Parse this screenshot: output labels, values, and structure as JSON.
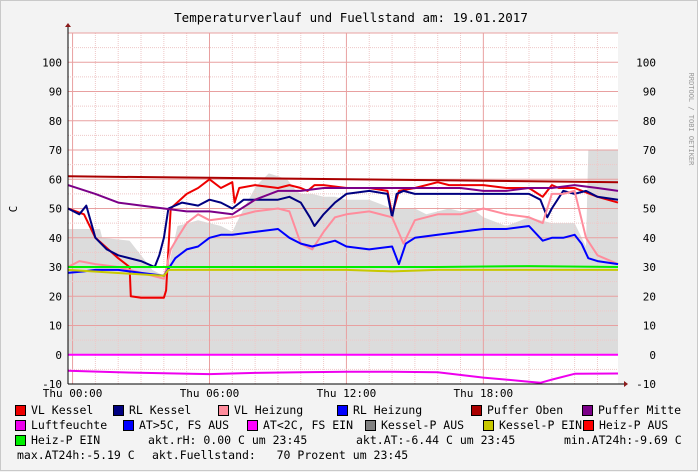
{
  "chart_data": {
    "type": "line",
    "title": "Temperaturverlauf und Fuellstand am: 19.01.2017",
    "ylabel": "C",
    "side_label": "RRDTOOL / TOBI OETIKER",
    "ylim": [
      -10,
      110
    ],
    "yticks": [
      -10,
      0,
      10,
      20,
      30,
      40,
      50,
      60,
      70,
      80,
      90,
      100
    ],
    "xlim": [
      -0.2,
      23.9
    ],
    "xticks": [
      {
        "x": 0,
        "label": "Thu 00:00"
      },
      {
        "x": 6,
        "label": "Thu 06:00"
      },
      {
        "x": 12,
        "label": "Thu 12:00"
      },
      {
        "x": 18,
        "label": "Thu 18:00"
      }
    ],
    "area": {
      "name": "Fuellstand",
      "color": "#DCDCDC",
      "x": [
        -0.2,
        1.2,
        1.3,
        2.5,
        3.5,
        4.0,
        4.2,
        4.6,
        5.5,
        6.5,
        7.0,
        7.5,
        8.0,
        8.2,
        8.6,
        9.0,
        9.4,
        9.8,
        10.0,
        10.5,
        11.0,
        11.5,
        12.0,
        13.0,
        14.0,
        15.0,
        15.5,
        16.0,
        16.5,
        17.0,
        17.5,
        18.0,
        19.0,
        20.0,
        21.0,
        22.0,
        22.5,
        22.6,
        23.9
      ],
      "y": [
        43,
        43,
        40,
        39,
        29,
        27,
        30,
        44,
        46,
        44,
        42,
        50,
        57,
        59,
        62,
        61,
        60,
        56,
        55,
        55,
        54,
        54,
        53,
        53,
        50,
        50,
        48,
        49,
        50,
        49,
        50,
        47,
        44,
        47,
        45,
        45,
        37,
        70,
        70
      ]
    },
    "series": [
      {
        "name": "VL Kessel",
        "color": "#EE0000",
        "x": [
          -0.2,
          0.5,
          1.0,
          2.0,
          2.5,
          2.55,
          3.0,
          4.0,
          4.1,
          4.3,
          5.0,
          5.5,
          6.0,
          6.5,
          7.0,
          7.1,
          7.3,
          8.0,
          9.0,
          9.5,
          10.0,
          10.3,
          10.6,
          11.0,
          12.0,
          13.0,
          13.8,
          14.0,
          14.3,
          15.0,
          16.0,
          16.5,
          17.0,
          18.0,
          19.0,
          20.0,
          20.6,
          21.0,
          21.3,
          22.0,
          23.0,
          23.9
        ],
        "y": [
          50,
          48,
          40,
          33,
          30,
          20,
          19.5,
          19.5,
          22,
          50,
          55,
          57,
          60,
          57,
          59,
          52,
          57,
          58,
          57,
          58,
          57,
          56,
          58,
          58,
          57,
          57,
          56,
          48,
          56,
          57,
          59,
          58,
          58,
          58,
          57,
          57,
          54,
          58,
          57,
          57,
          54,
          52
        ]
      },
      {
        "name": "RL Kessel",
        "color": "#000080",
        "x": [
          -0.2,
          0.3,
          0.6,
          1.0,
          1.5,
          2.0,
          3.0,
          3.6,
          3.8,
          4.0,
          4.2,
          4.8,
          5.5,
          6.0,
          6.5,
          7.0,
          7.5,
          8.0,
          9.0,
          9.5,
          10.0,
          10.4,
          10.6,
          11.0,
          11.5,
          12.0,
          13.0,
          13.8,
          14.0,
          14.2,
          14.5,
          15.0,
          16.0,
          17.0,
          18.0,
          19.0,
          20.0,
          20.5,
          20.8,
          21.0,
          21.5,
          22.0,
          22.5,
          23.0,
          23.9
        ],
        "y": [
          50,
          48,
          51,
          40,
          36,
          34,
          32,
          30,
          34,
          40,
          50,
          52,
          51,
          53,
          52,
          50,
          53,
          53,
          53,
          54,
          52,
          47,
          44,
          48,
          52,
          55,
          56,
          55,
          47,
          55,
          56,
          55,
          55,
          55,
          55,
          55,
          55,
          53,
          47,
          50,
          56,
          55,
          56,
          54,
          53
        ]
      },
      {
        "name": "VL Heizung",
        "color": "#FF8C9C",
        "x": [
          -0.2,
          0.3,
          1.0,
          2.0,
          3.0,
          4.0,
          4.3,
          4.6,
          5.0,
          5.5,
          6.0,
          7.0,
          8.0,
          9.0,
          9.5,
          10.0,
          10.5,
          11.0,
          11.5,
          12.0,
          13.0,
          14.0,
          14.5,
          15.0,
          16.0,
          17.0,
          18.0,
          19.0,
          20.0,
          20.6,
          21.0,
          21.5,
          22.0,
          22.5,
          23.0,
          23.9
        ],
        "y": [
          30,
          32,
          31,
          30,
          28,
          26,
          36,
          40,
          45,
          48,
          46,
          47,
          49,
          50,
          49,
          38,
          36,
          42,
          47,
          48,
          49,
          47,
          38,
          46,
          48,
          48,
          50,
          48,
          47,
          45,
          55,
          55,
          56,
          40,
          34,
          31
        ]
      },
      {
        "name": "RL Heizung",
        "color": "#0000FF",
        "x": [
          -0.2,
          0.5,
          1.0,
          2.0,
          3.0,
          4.0,
          4.5,
          5.0,
          5.5,
          6.0,
          6.5,
          7.0,
          8.0,
          9.0,
          9.5,
          10.0,
          10.5,
          11.0,
          11.5,
          12.0,
          13.0,
          14.0,
          14.3,
          14.6,
          15.0,
          16.0,
          17.0,
          18.0,
          19.0,
          20.0,
          20.6,
          21.0,
          21.5,
          22.0,
          22.3,
          22.6,
          23.0,
          23.9
        ],
        "y": [
          28,
          28.5,
          29,
          29,
          28,
          27,
          33,
          36,
          37,
          40,
          41,
          41,
          42,
          43,
          40,
          38,
          37,
          38,
          39,
          37,
          36,
          37,
          31,
          38,
          40,
          41,
          42,
          43,
          43,
          44,
          39,
          40,
          40,
          41,
          38,
          33,
          32,
          31
        ]
      },
      {
        "name": "Puffer Oben",
        "color": "#AA0000",
        "x": [
          -0.2,
          23.9
        ],
        "y": [
          61,
          59
        ]
      },
      {
        "name": "Puffer Mitte",
        "color": "#7B0088",
        "x": [
          -0.2,
          1.0,
          2.0,
          4.0,
          5.0,
          6.0,
          7.0,
          8.0,
          9.0,
          10.0,
          11.0,
          12.0,
          13.0,
          14.0,
          15.0,
          16.0,
          17.0,
          18.0,
          19.0,
          20.0,
          21.0,
          22.0,
          23.0,
          23.9
        ],
        "y": [
          58,
          55,
          52,
          50,
          49,
          49,
          48,
          53,
          56,
          56,
          57,
          57,
          57,
          57,
          57,
          57,
          57,
          56,
          56,
          57,
          57,
          58,
          57,
          56
        ]
      },
      {
        "name": "Luftfeuchte",
        "color": "#EE00EE",
        "x": [
          -0.2,
          2.0,
          4.0,
          6.0,
          8.0,
          10.0,
          12.0,
          14.0,
          16.0,
          18.0,
          19.0,
          20.0,
          20.5,
          21.0,
          22.0,
          23.9
        ],
        "y": [
          -5.5,
          -6,
          -6.3,
          -6.6,
          -6.2,
          -6,
          -5.8,
          -5.8,
          -6,
          -7.8,
          -8.5,
          -9.2,
          -9.6,
          -8.5,
          -6.5,
          -6.4
        ]
      },
      {
        "name": "AT<2C, FS EIN",
        "color": "#FF00FF",
        "x": [
          -0.2,
          23.9
        ],
        "y": [
          0,
          0
        ]
      },
      {
        "name": "Kessel-P EIN",
        "color": "#C8C800",
        "x": [
          -0.2,
          4.0,
          4.2,
          12.0,
          14.0,
          16.0,
          18.0,
          20.0,
          23.9
        ],
        "y": [
          29,
          27,
          29,
          29,
          28.5,
          29,
          29,
          29,
          29
        ]
      },
      {
        "name": "Heiz-P EIN",
        "color": "#00EE00",
        "x": [
          -0.2,
          4.2,
          8.0,
          12.0,
          16.0,
          20.0,
          23.9
        ],
        "y": [
          30,
          30,
          30,
          30,
          30,
          30.3,
          30
        ]
      }
    ]
  },
  "legend": [
    {
      "label": "VL Kessel",
      "color": "#EE0000"
    },
    {
      "label": "RL Kessel",
      "color": "#000080"
    },
    {
      "label": "VL Heizung",
      "color": "#FF8C9C"
    },
    {
      "label": "RL Heizung",
      "color": "#0000FF"
    },
    {
      "label": "Puffer Oben",
      "color": "#AA0000"
    },
    {
      "label": "Puffer Mitte",
      "color": "#7B0088"
    },
    {
      "label": "Luftfeuchte",
      "color": "#EE00EE"
    },
    {
      "label": "AT>5C, FS AUS",
      "color": "#0000FF"
    },
    {
      "label": "AT<2C, FS EIN",
      "color": "#FF00FF"
    },
    {
      "label": "Kessel-P AUS",
      "color": "#808080"
    },
    {
      "label": "Kessel-P EIN",
      "color": "#C8C800"
    },
    {
      "label": "Heiz-P AUS",
      "color": "#FF0000"
    },
    {
      "label": "Heiz-P EIN",
      "color": "#00EE00"
    }
  ],
  "stats": {
    "akt_rh": "akt.rH: 0.00 C um 23:45",
    "akt_at": "akt.AT:-6.44 C um 23:45",
    "min_at": "min.AT24h:-9.69 C",
    "max_at": "max.AT24h:-5.19 C",
    "fuellstand": "akt.Fuellstand:   70 Prozent um 23:45"
  }
}
